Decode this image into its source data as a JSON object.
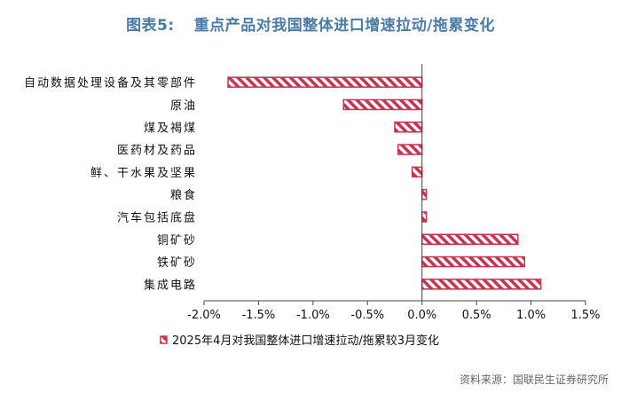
{
  "figure": {
    "label": "图表5:",
    "title": "重点产品对我国整体进口增速拉动/拖累变化"
  },
  "source_text": "资料来源：国联民生证券研究所",
  "chart_data": {
    "type": "bar",
    "orientation": "horizontal",
    "categories": [
      "自动数据处理设备及其零部件",
      "原油",
      "煤及褐煤",
      "医药材及药品",
      "鲜、干水果及坚果",
      "粮食",
      "汽车包括底盘",
      "铜矿砂",
      "铁矿砂",
      "集成电路"
    ],
    "series": [
      {
        "name": "2025年4月对我国整体进口增速拉动/拖累较3月变化",
        "values": [
          -1.78,
          -0.72,
          -0.25,
          -0.22,
          -0.09,
          0.04,
          0.04,
          0.88,
          0.94,
          1.09
        ]
      }
    ],
    "xlim": [
      -2.0,
      1.5
    ],
    "xticks": [
      -2.0,
      -1.5,
      -1.0,
      -0.5,
      0.0,
      0.5,
      1.0,
      1.5
    ],
    "xtick_labels": [
      "-2.0%",
      "-1.5%",
      "-1.0%",
      "-0.5%",
      "0.0%",
      "0.5%",
      "1.0%",
      "1.5%"
    ],
    "grid": false,
    "legend_position": "bottom",
    "bar_color": "#c8334f",
    "hatch_color": "#ffffff"
  }
}
